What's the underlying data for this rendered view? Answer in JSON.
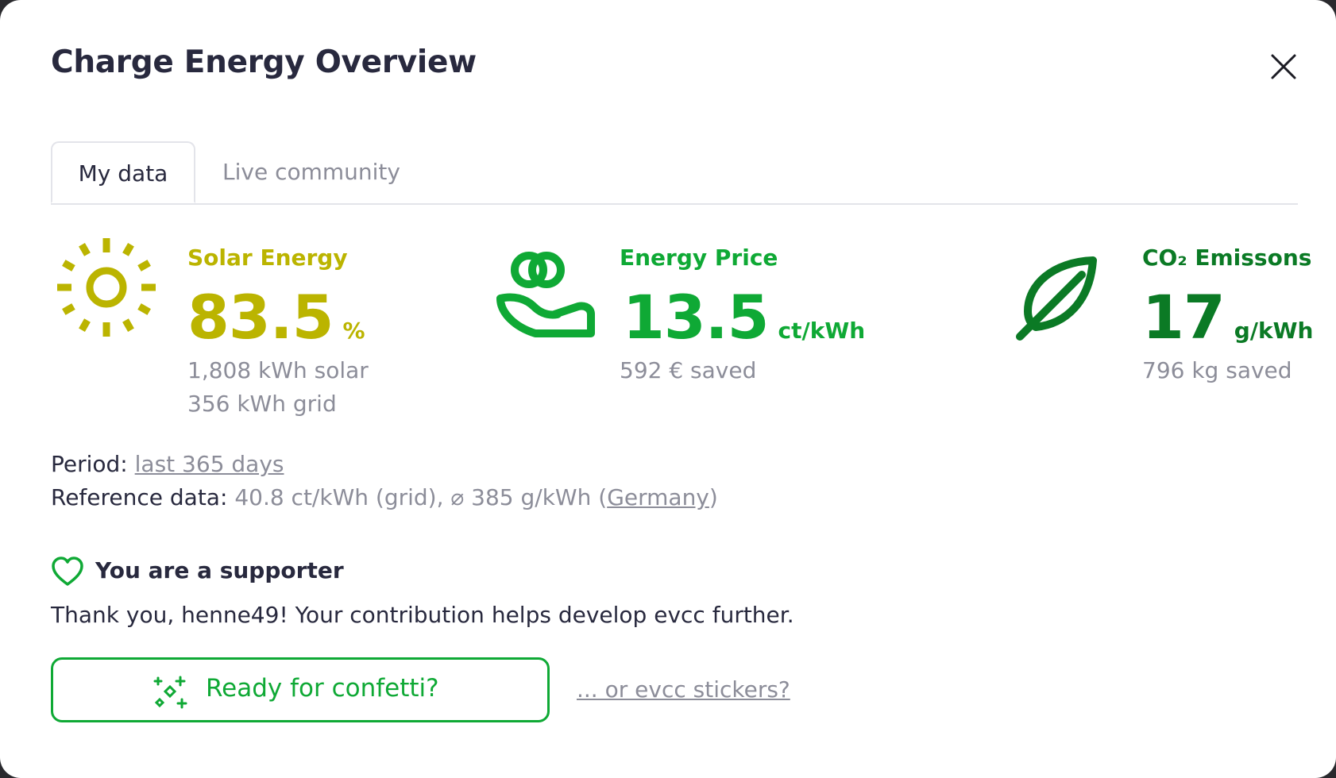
{
  "modal": {
    "title": "Charge Energy Overview",
    "close_icon": "close-icon"
  },
  "tabs": [
    {
      "label": "My data",
      "active": true
    },
    {
      "label": "Live community",
      "active": false
    }
  ],
  "stats": {
    "solar": {
      "icon": "sun-icon",
      "title": "Solar Energy",
      "value": "83.5",
      "unit": "%",
      "sub1": "1,808 kWh solar",
      "sub2": "356 kWh grid",
      "color": "#bbb400"
    },
    "price": {
      "icon": "hand-coins-icon",
      "title": "Energy Price",
      "value": "13.5",
      "unit": "ct/kWh",
      "sub1": "592 € saved",
      "color": "#0fa935"
    },
    "co2": {
      "icon": "leaf-icon",
      "title": "CO₂ Emissons",
      "value": "17",
      "unit": "g/kWh",
      "sub1": "796 kg saved",
      "color": "#0b7a25"
    }
  },
  "period": {
    "label": "Period:",
    "value": "last 365 days"
  },
  "reference": {
    "label": "Reference data:",
    "text": "40.8 ct/kWh (grid), ⌀ 385 g/kWh (",
    "region": "Germany",
    "close_paren": ")"
  },
  "supporter": {
    "icon": "heart-icon",
    "title": "You are a supporter",
    "thanks": "Thank you, henne49! Your contribution helps develop evcc further.",
    "confetti_label": "Ready for confetti?",
    "confetti_icon": "sparkles-icon",
    "stickers_link": "... or evcc stickers?"
  }
}
